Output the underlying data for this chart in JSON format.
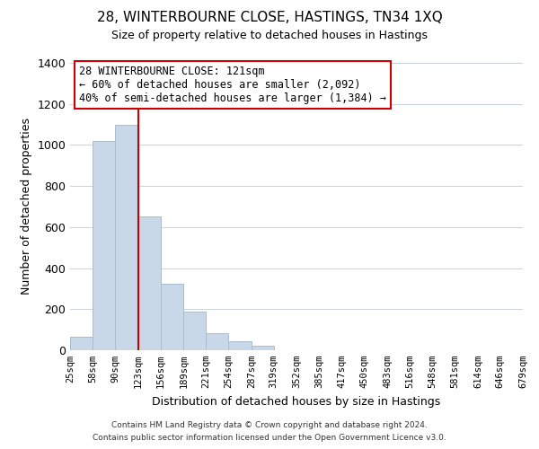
{
  "title": "28, WINTERBOURNE CLOSE, HASTINGS, TN34 1XQ",
  "subtitle": "Size of property relative to detached houses in Hastings",
  "xlabel": "Distribution of detached houses by size in Hastings",
  "ylabel": "Number of detached properties",
  "bar_color": "#c8d8e8",
  "bar_edge_color": "#a8bece",
  "vline_color": "#cc0000",
  "vline_x": 123,
  "bins": [
    25,
    58,
    90,
    123,
    156,
    189,
    221,
    254,
    287,
    319,
    352,
    385,
    417,
    450,
    483,
    516,
    548,
    581,
    614,
    646,
    679
  ],
  "bin_labels": [
    "25sqm",
    "58sqm",
    "90sqm",
    "123sqm",
    "156sqm",
    "189sqm",
    "221sqm",
    "254sqm",
    "287sqm",
    "319sqm",
    "352sqm",
    "385sqm",
    "417sqm",
    "450sqm",
    "483sqm",
    "516sqm",
    "548sqm",
    "581sqm",
    "614sqm",
    "646sqm",
    "679sqm"
  ],
  "values": [
    65,
    1020,
    1100,
    650,
    325,
    190,
    85,
    45,
    20,
    0,
    0,
    0,
    0,
    0,
    0,
    0,
    0,
    0,
    0,
    0
  ],
  "ylim": [
    0,
    1400
  ],
  "yticks": [
    0,
    200,
    400,
    600,
    800,
    1000,
    1200,
    1400
  ],
  "annotation_line1": "28 WINTERBOURNE CLOSE: 121sqm",
  "annotation_line2": "← 60% of detached houses are smaller (2,092)",
  "annotation_line3": "40% of semi-detached houses are larger (1,384) →",
  "footnote1": "Contains HM Land Registry data © Crown copyright and database right 2024.",
  "footnote2": "Contains public sector information licensed under the Open Government Licence v3.0.",
  "background_color": "#ffffff",
  "grid_color": "#c8d4dc"
}
